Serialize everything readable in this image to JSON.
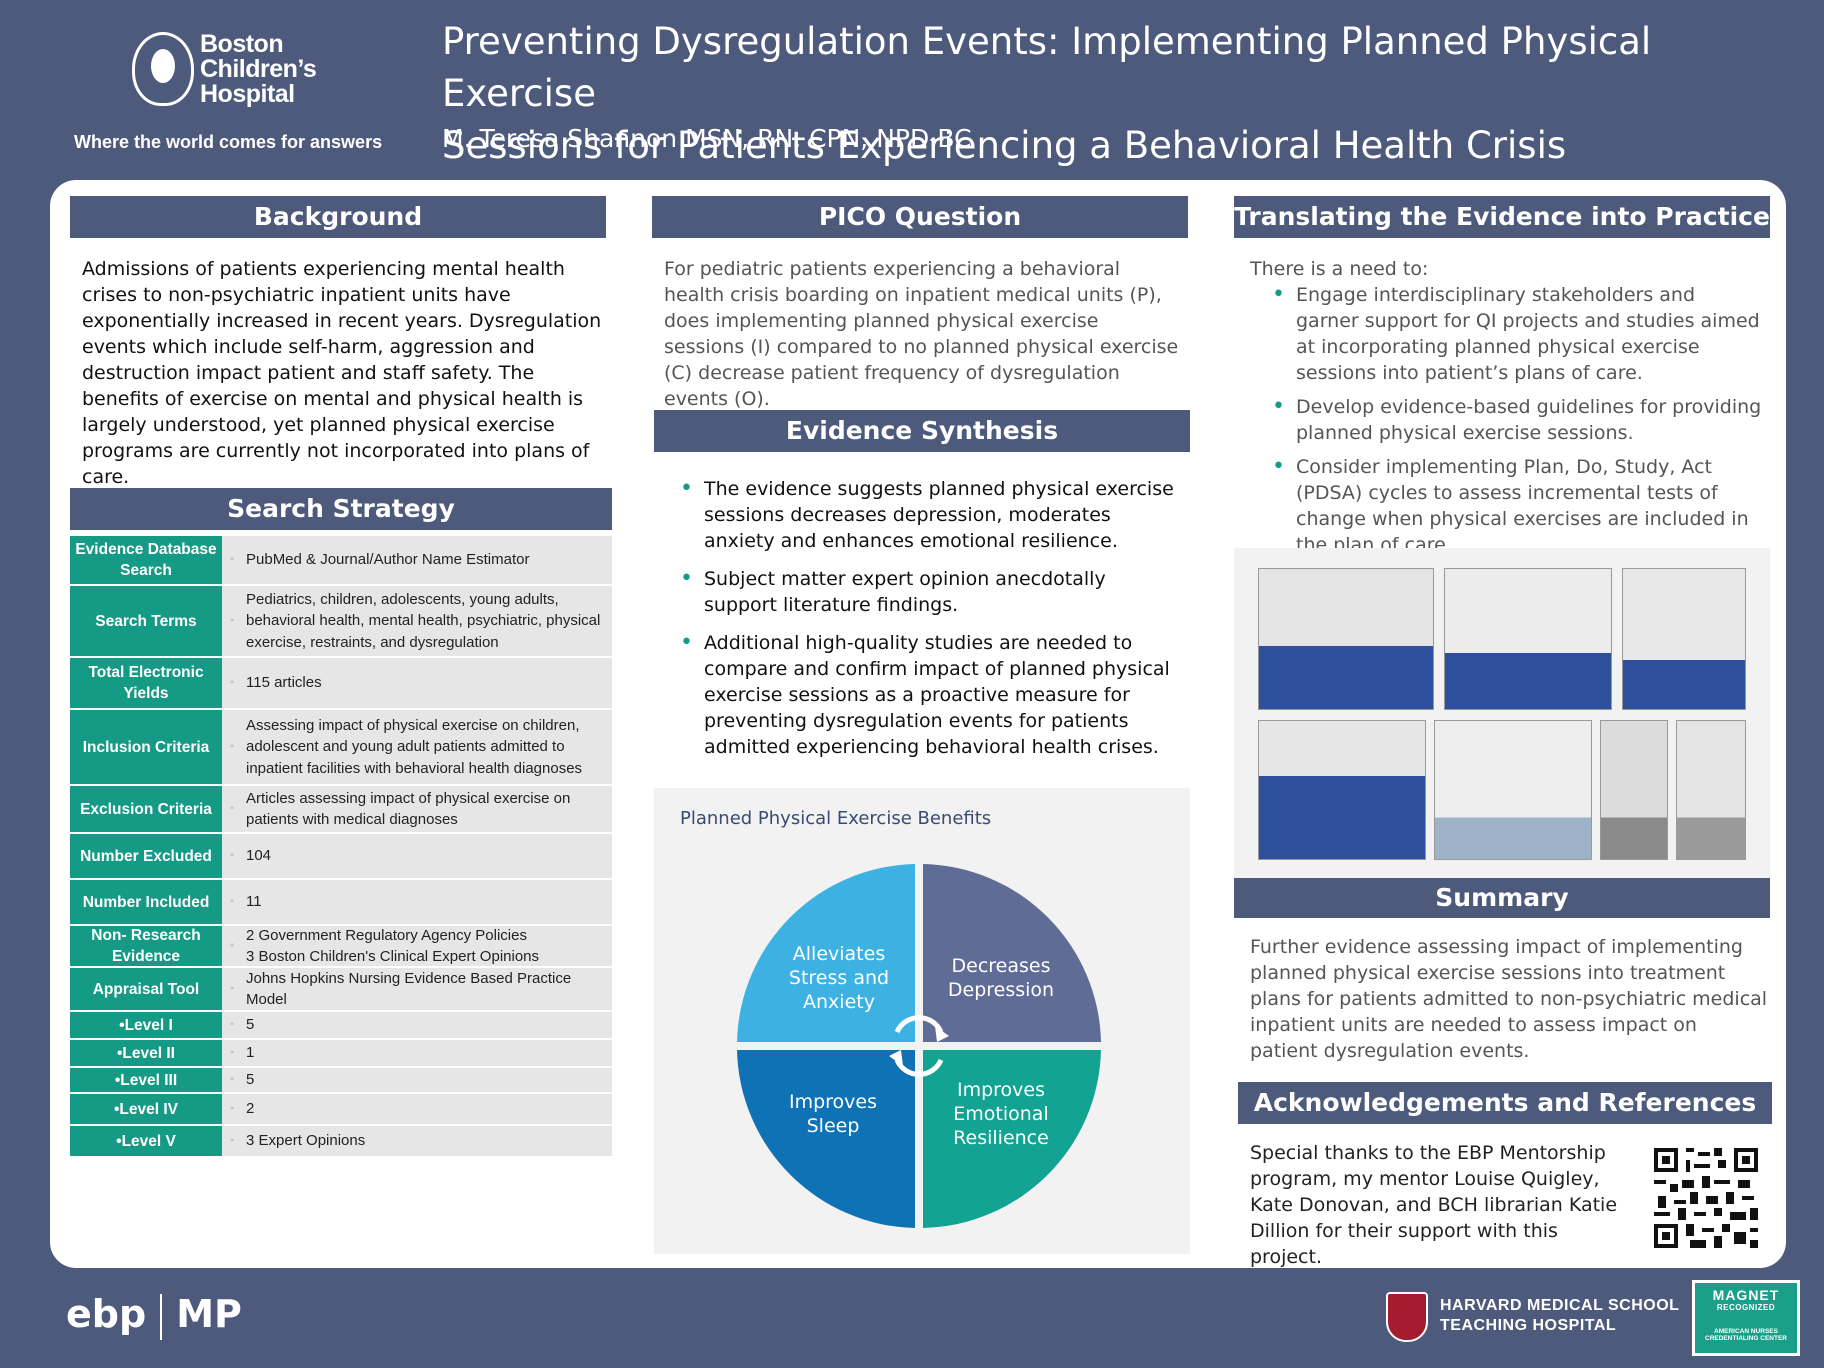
{
  "header": {
    "logo_line1": "Boston",
    "logo_line2": "Children’s",
    "logo_line3": "Hospital",
    "tagline": "Where the world comes for answers",
    "title_line1": "Preventing Dysregulation Events:  Implementing Planned Physical Exercise",
    "title_line2": "Sessions for Patients Experiencing a Behavioral Health Crisis",
    "author": "M. Teresa Shannon MSN, RN, CPN, NPD-BC"
  },
  "background": {
    "heading": "Background",
    "text": "Admissions of patients experiencing mental health crises to non-psychiatric inpatient units have exponentially increased in recent years.  Dysregulation events which  include self-harm, aggression and destruction impact patient and staff safety.  The benefits of exercise on mental and physical health is largely understood, yet planned physical exercise programs are currently not incorporated into plans of care."
  },
  "search": {
    "heading": "Search Strategy",
    "rows": [
      {
        "label": "Evidence Database Search",
        "value": "PubMed & Journal/Author Name Estimator"
      },
      {
        "label": "Search Terms",
        "value": "Pediatrics, children, adolescents, young adults, behavioral health, mental health, psychiatric, physical exercise, restraints, and dysregulation"
      },
      {
        "label": "Total Electronic Yields",
        "value": "115 articles"
      },
      {
        "label": "Inclusion Criteria",
        "value": "Assessing impact of physical exercise on children, adolescent and young adult patients admitted to inpatient facilities with behavioral health diagnoses"
      },
      {
        "label": "Exclusion Criteria",
        "value": "Articles assessing impact of physical exercise on patients with medical diagnoses"
      },
      {
        "label": "Number Excluded",
        "value": "104"
      },
      {
        "label": "Number Included",
        "value": "11"
      },
      {
        "label": "Non- Research Evidence",
        "value": "2 Government Regulatory Agency Policies\n3 Boston Children's Clinical Expert Opinions"
      },
      {
        "label": "Appraisal Tool",
        "value": "Johns Hopkins Nursing Evidence Based Practice Model"
      },
      {
        "label": "•Level  I",
        "value": "5"
      },
      {
        "label": "•Level II",
        "value": "1"
      },
      {
        "label": "•Level III",
        "value": "5"
      },
      {
        "label": "•Level IV",
        "value": "2"
      },
      {
        "label": "•Level V",
        "value": "3 Expert Opinions"
      }
    ]
  },
  "pico": {
    "heading": "PICO Question",
    "text": "For pediatric patients experiencing a behavioral health crisis boarding on inpatient medical units (P), does implementing planned physical exercise sessions (I) compared to no planned physical exercise (C) decrease patient frequency of dysregulation events (O)."
  },
  "synthesis": {
    "heading": "Evidence Synthesis",
    "items": [
      "The evidence suggests planned physical exercise sessions decreases depression, moderates anxiety and enhances emotional resilience.",
      "Subject matter expert opinion anecdotally support literature findings.",
      "Additional high-quality studies are needed to compare and confirm impact of planned physical exercise sessions as a proactive measure for preventing dysregulation events for patients admitted experiencing behavioral health crises."
    ]
  },
  "diagram": {
    "title": "Planned Physical Exercise Benefits",
    "q1": "Alleviates Stress and Anxiety",
    "q2": "Decreases Depression",
    "q3": "Improves Sleep",
    "q4": "Improves Emotional Resilience",
    "colors": {
      "q1": "#3eb1e3",
      "q2": "#5f6d96",
      "q3": "#0e72b5",
      "q4": "#12a392"
    }
  },
  "translating": {
    "heading": "Translating the Evidence into Practice",
    "intro": "There is a need to:",
    "items": [
      "Engage interdisciplinary stakeholders and garner support  for QI projects and studies aimed at incorporating planned physical exercise sessions into patient’s plans of care.",
      "Develop evidence-based guidelines for providing planned physical exercise sessions.",
      "Consider implementing Plan, Do, Study, Act (PDSA) cycles to assess incremental tests of change when physical exercises are included in the plan of care."
    ]
  },
  "summary": {
    "heading": "Summary",
    "text": "Further evidence assessing impact of implementing planned physical exercise sessions into treatment plans for patients admitted to non-psychiatric medical inpatient units are needed to assess impact on patient dysregulation events."
  },
  "ack": {
    "heading": "Acknowledgements and References",
    "text": "Special thanks to the EBP Mentorship program, my mentor Louise Quigley, Kate Donovan, and BCH librarian Katie Dillion for their support with this project."
  },
  "footer": {
    "ebp": "ebp",
    "mp": "MP",
    "hms_line1": "HARVARD MEDICAL SCHOOL",
    "hms_line2": "TEACHING HOSPITAL",
    "magnet_line1": "MAGNET",
    "magnet_line2": "RECOGNIZED",
    "magnet_line3": "AMERICAN NURSES CREDENTIALING CENTER"
  },
  "colors": {
    "navy": "#4d5a7c",
    "teal": "#149a85"
  }
}
